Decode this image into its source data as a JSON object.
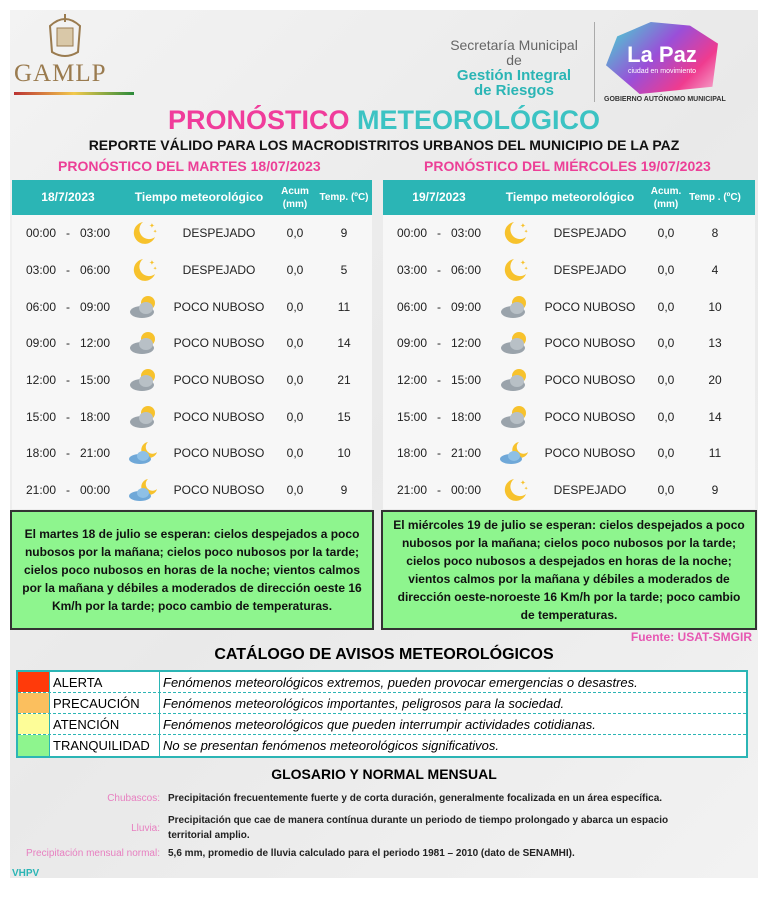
{
  "header": {
    "logo_left": "GAMLP",
    "secretaria_line1": "Secretaría Municipal de",
    "secretaria_line2": "Gestión Integral",
    "secretaria_line3": "de Riesgos",
    "logo_right": "La Paz",
    "logo_right_tag": "ciudad en movimiento",
    "gobierno": "GOBIERNO AUTÓNOMO MUNICIPAL"
  },
  "title_part1": "PRONÓSTICO",
  "title_part2": "METEOROLÓGICO",
  "subtitle": "REPORTE VÁLIDO PARA LOS MACRODISTRITOS URBANOS DEL MUNICIPIO DE LA PAZ",
  "colors": {
    "teal": "#2bb5b5",
    "pink": "#f03c9b",
    "summary_green": "#8ef58e"
  },
  "days": [
    {
      "title": "PRONÓSTICO DEL MARTES 18/07/2023",
      "date": "18/7/2023",
      "col_weather": "Tiempo meteorológico",
      "col_acum": "Acum (mm)",
      "col_temp": "Temp. (ºC)",
      "rows": [
        {
          "time": "00:00   -   03:00",
          "icon": "moon",
          "weather": "DESPEJADO",
          "acum": "0,0",
          "temp": "9"
        },
        {
          "time": "03:00   -   06:00",
          "icon": "moon",
          "weather": "DESPEJADO",
          "acum": "0,0",
          "temp": "5"
        },
        {
          "time": "06:00   -   09:00",
          "icon": "cloud-sun",
          "weather": "POCO NUBOSO",
          "acum": "0,0",
          "temp": "11"
        },
        {
          "time": "09:00   -   12:00",
          "icon": "cloud-sun",
          "weather": "POCO NUBOSO",
          "acum": "0,0",
          "temp": "14"
        },
        {
          "time": "12:00   -   15:00",
          "icon": "cloud-sun",
          "weather": "POCO NUBOSO",
          "acum": "0,0",
          "temp": "21"
        },
        {
          "time": "15:00   -   18:00",
          "icon": "cloud-sun",
          "weather": "POCO NUBOSO",
          "acum": "0,0",
          "temp": "15"
        },
        {
          "time": "18:00   -   21:00",
          "icon": "cloud-moon",
          "weather": "POCO NUBOSO",
          "acum": "0,0",
          "temp": "10"
        },
        {
          "time": "21:00   -   00:00",
          "icon": "cloud-moon",
          "weather": "POCO NUBOSO",
          "acum": "0,0",
          "temp": "9"
        }
      ],
      "summary": "El martes 18 de julio se esperan: cielos despejados a poco nubosos por la mañana; cielos poco nubosos por la tarde; cielos poco nubosos en horas de la noche; vientos calmos por la mañana y débiles a moderados de dirección oeste 16 Km/h por la tarde; poco cambio de temperaturas."
    },
    {
      "title": "PRONÓSTICO DEL MIÉRCOLES 19/07/2023",
      "date": "19/7/2023",
      "col_weather": "Tiempo   meteorológico",
      "col_acum": "Acum. (mm)",
      "col_temp": "Temp . (ºC)",
      "rows": [
        {
          "time": "00:00   -   03:00",
          "icon": "moon",
          "weather": "DESPEJADO",
          "acum": "0,0",
          "temp": "8"
        },
        {
          "time": "03:00   -   06:00",
          "icon": "moon",
          "weather": "DESPEJADO",
          "acum": "0,0",
          "temp": "4"
        },
        {
          "time": "06:00   -   09:00",
          "icon": "cloud-sun",
          "weather": "POCO NUBOSO",
          "acum": "0,0",
          "temp": "10"
        },
        {
          "time": "09:00   -   12:00",
          "icon": "cloud-sun",
          "weather": "POCO NUBOSO",
          "acum": "0,0",
          "temp": "13"
        },
        {
          "time": "12:00   -   15:00",
          "icon": "cloud-sun",
          "weather": "POCO NUBOSO",
          "acum": "0,0",
          "temp": "20"
        },
        {
          "time": "15:00   -   18:00",
          "icon": "cloud-sun",
          "weather": "POCO NUBOSO",
          "acum": "0,0",
          "temp": "14"
        },
        {
          "time": "18:00   -   21:00",
          "icon": "cloud-moon",
          "weather": "POCO NUBOSO",
          "acum": "0,0",
          "temp": "11"
        },
        {
          "time": "21:00   -   00:00",
          "icon": "moon",
          "weather": "DESPEJADO",
          "acum": "0,0",
          "temp": "9"
        }
      ],
      "summary": "El miércoles 19 de julio se esperan: cielos despejados a poco nubosos por la mañana; cielos poco nubosos por la tarde; cielos poco nubosos a despejados en horas de la noche; vientos calmos por la mañana y débiles a moderados de dirección oeste-noroeste 16 Km/h por la tarde; poco cambio de temperaturas."
    }
  ],
  "fuente": "Fuente: USAT-SMGIR",
  "catalog": {
    "title": "CATÁLOGO DE AVISOS METEOROLÓGICOS",
    "items": [
      {
        "label": "ALERTA",
        "color": "#ff3a0a",
        "desc": "Fenómenos meteorológicos extremos, pueden provocar emergencias o desastres."
      },
      {
        "label": "PRECAUCIÓN",
        "color": "#fbbf5e",
        "desc": "Fenómenos meteorológicos importantes, peligrosos para la sociedad."
      },
      {
        "label": "ATENCIÓN",
        "color": "#fdfd98",
        "desc": "Fenómenos meteorológicos que pueden interrumpir actividades cotidianas."
      },
      {
        "label": "TRANQUILIDAD",
        "color": "#8ef58e",
        "desc": "No se presentan fenómenos meteorológicos significativos."
      }
    ]
  },
  "glossary": {
    "title": "GLOSARIO Y NORMAL MENSUAL",
    "items": [
      {
        "term": "Chubascos:",
        "def": "Precipitación frecuentemente fuerte y de corta duración, generalmente focalizada en un área específica."
      },
      {
        "term": "Lluvia:",
        "def": "Precipitación que cae de manera contínua durante un periodo de tiempo prolongado y abarca un espacio territorial amplio."
      },
      {
        "term": "Precipitación mensual normal:",
        "def": "5,6 mm, promedio de lluvia calculado para el periodo 1981 – 2010 (dato de SENAMHI)."
      }
    ]
  },
  "author": "VHPV"
}
